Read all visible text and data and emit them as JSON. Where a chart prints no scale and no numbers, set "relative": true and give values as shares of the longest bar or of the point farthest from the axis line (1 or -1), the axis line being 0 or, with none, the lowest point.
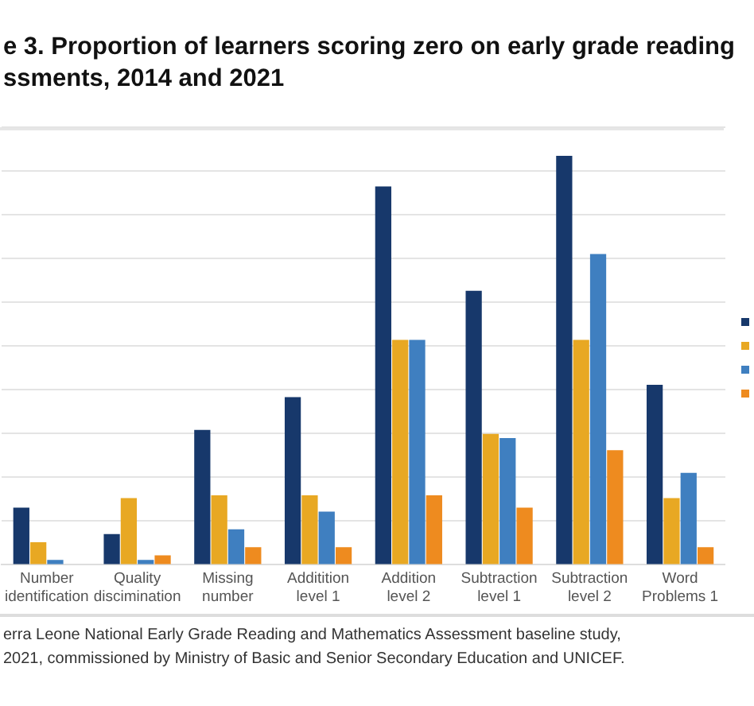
{
  "chart_data": {
    "type": "bar",
    "title": "e 3. Proportion of learners scoring zero on early grade reading\nssments, 2014 and 2021",
    "categories": [
      "Number identification",
      "Quality discimination",
      "Missing number",
      "Additition level 1",
      "Addition level 2",
      "Subtraction level 1",
      "Subtraction level 2",
      "Word Problems 1"
    ],
    "relative": true,
    "series": [
      {
        "color": "#17386b",
        "values": [
          0.14,
          0.075,
          0.33,
          0.41,
          0.925,
          0.67,
          1,
          0.44
        ]
      },
      {
        "color": "#e8a823",
        "values": [
          0.055,
          0.163,
          0.17,
          0.17,
          0.55,
          0.32,
          0.55,
          0.163
        ]
      },
      {
        "color": "#3f7fc0",
        "values": [
          0.012,
          0.012,
          0.087,
          0.13,
          0.55,
          0.31,
          0.76,
          0.225
        ]
      },
      {
        "color": "#ee8b1f",
        "values": [
          0,
          0.023,
          0.043,
          0.043,
          0.17,
          0.14,
          0.28,
          0.043
        ]
      }
    ],
    "grid": "y",
    "annotations": [
      "erra Leone National Early Grade Reading and Mathematics Assessment baseline study,\n2021, commissioned by Ministry of Basic and Senior Secondary Education and UNICEF."
    ]
  }
}
